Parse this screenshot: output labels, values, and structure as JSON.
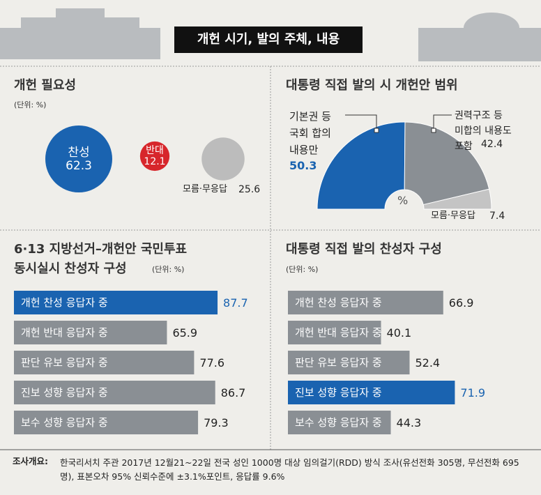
{
  "header": {
    "title": "개헌 시기, 발의 주체, 내용"
  },
  "chart_data": [
    {
      "type": "bubble",
      "title": "개헌 필요성",
      "unit": "(단위: %)",
      "categories": [
        "찬성",
        "반대",
        "모름·무응답"
      ],
      "values": [
        62.3,
        12.1,
        25.6
      ],
      "colors": [
        "#1a63b0",
        "#d7262b",
        "#bcbcbc"
      ]
    },
    {
      "type": "pie",
      "title": "대통령 직접 발의 시 개헌안 범위",
      "center_label": "%",
      "categories": [
        "기본권 등\n국회 합의\n내용만",
        "권력구조 등\n미합의 내용도\n포함",
        "모름·무응답"
      ],
      "values": [
        50.3,
        42.4,
        7.4
      ],
      "colors": [
        "#1a63b0",
        "#8a8f94",
        "#c4c4c4"
      ]
    },
    {
      "type": "bar",
      "title": "6·13 지방선거–개헌안 국민투표\n동시실시 찬성자 구성",
      "unit": "(단위: %)",
      "categories": [
        "개헌 찬성 응답자 중",
        "개헌 반대 응답자 중",
        "판단 유보 응답자 중",
        "진보 성향 응답자 중",
        "보수 성향 응답자 중"
      ],
      "values": [
        87.7,
        65.9,
        77.6,
        86.7,
        79.3
      ],
      "colors": [
        "#1a63b0",
        "#8a8f94",
        "#8a8f94",
        "#8a8f94",
        "#8a8f94"
      ]
    },
    {
      "type": "bar",
      "title": "대통령 직접 발의 찬성자 구성",
      "unit": "(단위: %)",
      "categories": [
        "개헌 찬성 응답자 중",
        "개헌 반대 응답자 중",
        "판단 유보 응답자 중",
        "진보 성향 응답자 중",
        "보수 성향 응답자 중"
      ],
      "values": [
        66.9,
        40.1,
        52.4,
        71.9,
        44.3
      ],
      "colors": [
        "#8a8f94",
        "#8a8f94",
        "#8a8f94",
        "#1a63b0",
        "#8a8f94"
      ]
    }
  ],
  "footer": {
    "label": "조사개요:",
    "text": "한국리서치 주관 2017년 12월21~22일 전국 성인 1000명 대상 임의걸기(RDD) 방식 조사(유선전화 305명, 무선전화 695명), 표본오차 95% 신뢰수준에 ±3.1%포인트, 응답률 9.6%"
  }
}
